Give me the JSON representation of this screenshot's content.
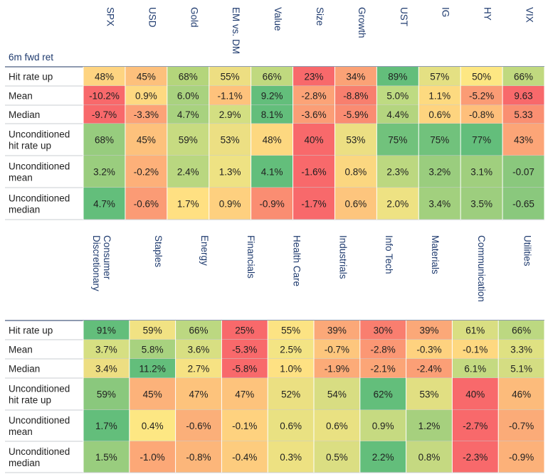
{
  "chart_data": [
    {
      "type": "heatmap",
      "title": "6m fwd ret",
      "columns": [
        "SPX",
        "USD",
        "Gold",
        "EM vs. DM",
        "Value",
        "Size",
        "Growth",
        "UST",
        "IG",
        "HY",
        "VIX"
      ],
      "rows": [
        {
          "label": [
            "Hit rate up"
          ],
          "values": [
            "48%",
            "45%",
            "68%",
            "55%",
            "66%",
            "23%",
            "34%",
            "89%",
            "57%",
            "50%",
            "66%"
          ],
          "colors": [
            "#fed481",
            "#fdc07c",
            "#b4d57b",
            "#edde82",
            "#c0d97f",
            "#f8696b",
            "#fba276",
            "#63be7b",
            "#e4e083",
            "#fde783",
            "#c0d97f"
          ]
        },
        {
          "label": [
            "Mean"
          ],
          "values": [
            "-10.2%",
            "0.9%",
            "6.0%",
            "-1.1%",
            "9.2%",
            "-2.8%",
            "-8.8%",
            "5.0%",
            "1.1%",
            "-5.2%",
            "9.63"
          ],
          "colors": [
            "#f8696b",
            "#fed981",
            "#a9d27f",
            "#fec27c",
            "#63be7b",
            "#fca377",
            "#f87f6e",
            "#bedb82",
            "#fdda80",
            "#fb9c75",
            "#f8696b"
          ]
        },
        {
          "label": [
            "Median"
          ],
          "values": [
            "-9.7%",
            "-3.3%",
            "4.7%",
            "2.9%",
            "8.1%",
            "-3.6%",
            "-5.9%",
            "4.4%",
            "0.6%",
            "-0.8%",
            "5.33"
          ],
          "colors": [
            "#f8696b",
            "#fca377",
            "#a8d27f",
            "#d3df82",
            "#63be7b",
            "#fb9e76",
            "#fa8c72",
            "#b4d57f",
            "#fed47f",
            "#febf7b",
            "#fa8f72"
          ]
        },
        {
          "label": [
            "Unconditioned",
            "hit rate up"
          ],
          "values": [
            "68%",
            "45%",
            "59%",
            "53%",
            "48%",
            "40%",
            "53%",
            "75%",
            "75%",
            "77%",
            "43%"
          ],
          "colors": [
            "#97cc7e",
            "#fdc17c",
            "#c7db81",
            "#ecdf83",
            "#fdd880",
            "#f8696b",
            "#ecdf83",
            "#71c27c",
            "#71c27c",
            "#63be7b",
            "#fca577"
          ]
        },
        {
          "label": [
            "Unconditioned",
            "mean"
          ],
          "values": [
            "3.2%",
            "-0.2%",
            "2.4%",
            "1.3%",
            "4.1%",
            "-1.6%",
            "0.8%",
            "2.3%",
            "3.2%",
            "3.1%",
            "-0.07"
          ],
          "colors": [
            "#9acd7e",
            "#fdb079",
            "#b9d780",
            "#eee283",
            "#63be7b",
            "#f8696b",
            "#fbd780",
            "#bcd880",
            "#9acd7e",
            "#a0cf7e",
            "#8ac87d"
          ]
        },
        {
          "label": [
            "Unconditioned",
            "median"
          ],
          "values": [
            "4.7%",
            "-0.6%",
            "1.7%",
            "0.9%",
            "-0.9%",
            "-1.7%",
            "0.6%",
            "2.0%",
            "3.4%",
            "3.5%",
            "-0.65"
          ],
          "colors": [
            "#63be7b",
            "#fb9b75",
            "#ffe082",
            "#fed07f",
            "#fa8d72",
            "#f8696b",
            "#fdc57d",
            "#eee283",
            "#a2d07e",
            "#9dce7e",
            "#8ac87d"
          ]
        }
      ]
    },
    {
      "type": "heatmap",
      "title": "",
      "columns": [
        [
          "Consumer",
          "Discretionary"
        ],
        [
          "Staples"
        ],
        [
          "Energy"
        ],
        [
          "Financials"
        ],
        [
          "Health Care"
        ],
        [
          "Industrials"
        ],
        [
          "Info Tech"
        ],
        [
          "Materials"
        ],
        [
          "Communication"
        ],
        [
          "Utilities"
        ]
      ],
      "rows": [
        {
          "label": [
            "Hit rate up"
          ],
          "values": [
            "91%",
            "59%",
            "66%",
            "25%",
            "55%",
            "39%",
            "30%",
            "39%",
            "61%",
            "66%"
          ],
          "colors": [
            "#63be7b",
            "#f1e283",
            "#bcd881",
            "#f8696b",
            "#fce383",
            "#fba878",
            "#f97e6f",
            "#fba878",
            "#d9de82",
            "#bcd881"
          ]
        },
        {
          "label": [
            "Mean"
          ],
          "values": [
            "3.7%",
            "5.8%",
            "3.6%",
            "-5.3%",
            "2.5%",
            "-0.7%",
            "-2.8%",
            "-0.3%",
            "-0.1%",
            "3.3%"
          ],
          "colors": [
            "#d6df82",
            "#a8d27f",
            "#d8df82",
            "#f8696b",
            "#f3e484",
            "#fdc67d",
            "#fb9774",
            "#fed27f",
            "#fed880",
            "#dfe182"
          ]
        },
        {
          "label": [
            "Median"
          ],
          "values": [
            "3.4%",
            "11.2%",
            "2.7%",
            "-5.8%",
            "1.0%",
            "-1.9%",
            "-2.1%",
            "-2.4%",
            "6.1%",
            "5.1%"
          ],
          "colors": [
            "#edde82",
            "#63be7b",
            "#f6e283",
            "#f8696b",
            "#fee183",
            "#fcab78",
            "#fba577",
            "#fb9f76",
            "#c4da81",
            "#d4dd82"
          ]
        },
        {
          "label": [
            "Unconditioned",
            "hit rate up"
          ],
          "values": [
            "59%",
            "45%",
            "47%",
            "47%",
            "52%",
            "54%",
            "62%",
            "53%",
            "40%",
            "46%"
          ],
          "colors": [
            "#8ac87d",
            "#fcb27a",
            "#fdc37c",
            "#fdc37c",
            "#ebe082",
            "#d8dd82",
            "#63be7b",
            "#e1df82",
            "#f8696b",
            "#fcbb7b"
          ]
        },
        {
          "label": [
            "Unconditioned",
            "mean"
          ],
          "values": [
            "1.7%",
            "0.4%",
            "-0.6%",
            "-0.1%",
            "0.6%",
            "0.6%",
            "0.9%",
            "1.2%",
            "-2.7%",
            "-0.7%"
          ],
          "colors": [
            "#63be7b",
            "#fde783",
            "#fbaf79",
            "#fed27f",
            "#e9e182",
            "#e9e182",
            "#c6da81",
            "#a6d07e",
            "#f8696b",
            "#fbab78"
          ]
        },
        {
          "label": [
            "Unconditioned",
            "median"
          ],
          "values": [
            "1.5%",
            "-1.0%",
            "-0.8%",
            "-0.4%",
            "0.3%",
            "0.5%",
            "2.2%",
            "0.8%",
            "-2.3%",
            "-0.9%"
          ],
          "colors": [
            "#99cd7e",
            "#fca877",
            "#fcb67a",
            "#fdcc7e",
            "#ede182",
            "#dbde82",
            "#63be7b",
            "#c5d981",
            "#f8696b",
            "#fcb179"
          ]
        }
      ]
    }
  ]
}
